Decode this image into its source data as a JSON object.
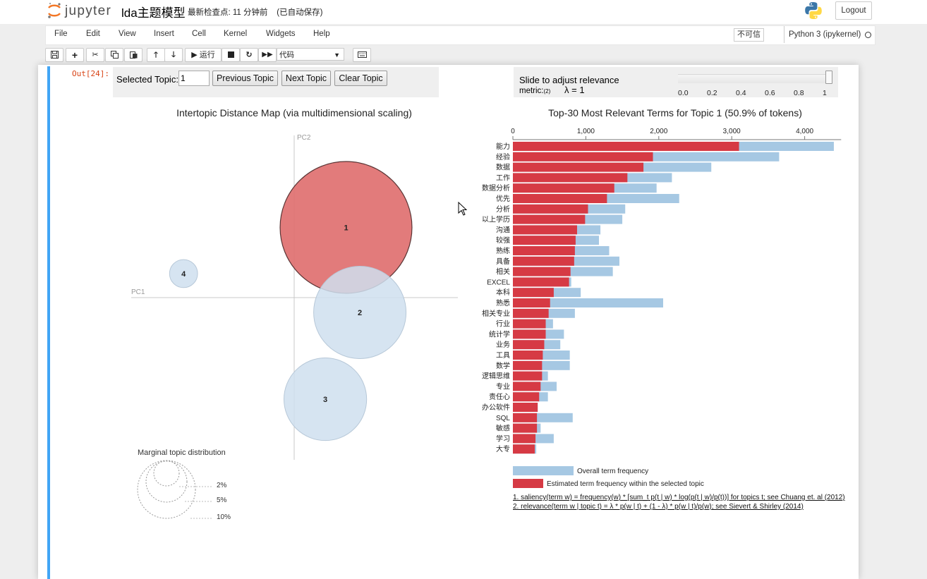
{
  "header": {
    "logo_text": "jupyter",
    "notebook_name": "lda主题模型",
    "checkpoint": "最新检查点: 11 分钟前    (已自动保存)",
    "logout_label": "Logout"
  },
  "menubar": {
    "items": [
      "File",
      "Edit",
      "View",
      "Insert",
      "Cell",
      "Kernel",
      "Widgets",
      "Help"
    ],
    "trust_label": "不可信",
    "kernel_name": "Python 3 (ipykernel)"
  },
  "toolbar": {
    "run_label": "▶ 运行",
    "cell_type": "代码",
    "icons": [
      "save-icon",
      "plus-icon",
      "cut-icon",
      "copy-icon",
      "paste-icon",
      "arrow-up-icon",
      "arrow-down-icon",
      "run-icon",
      "stop-icon",
      "restart-icon",
      "fast-forward-icon",
      "keyboard-icon"
    ]
  },
  "cell": {
    "prompt": "Out[24]:"
  },
  "controls": {
    "selected_topic_label": "Selected Topic:",
    "selected_topic_value": "1",
    "previous_label": "Previous Topic",
    "next_label": "Next Topic",
    "clear_label": "Clear Topic",
    "lambda_label_line1": "Slide to adjust relevance",
    "lambda_label_line2": "metric:",
    "lambda_label_sub": "(2)",
    "lambda_value": "λ = 1",
    "lambda_fraction": 1.0,
    "lambda_ticks": [
      "0.0",
      "0.2",
      "0.4",
      "0.6",
      "0.8",
      "1"
    ]
  },
  "colors": {
    "topic_red": "#d62728",
    "circle_red": "#e07070",
    "circle_blue": "#cfdfee",
    "bar_blue": "#a6c8e3",
    "bar_red": "#d63a44",
    "cell_bar_blue": "#42a5f5",
    "prompt_red": "#d84315"
  },
  "chart_data": [
    {
      "type": "scatter",
      "title": "Intertopic Distance Map (via multidimensional scaling)",
      "xlabel": "PC1",
      "ylabel": "PC2",
      "selected_topic": 1,
      "topics": [
        {
          "label": "1",
          "pc1": 0.15,
          "pc2": 0.38,
          "share_pct": 50.9
        },
        {
          "label": "2",
          "pc1": 0.19,
          "pc2": -0.08,
          "share_pct": 25
        },
        {
          "label": "3",
          "pc1": 0.09,
          "pc2": -0.55,
          "share_pct": 20
        },
        {
          "label": "4",
          "pc1": -0.32,
          "pc2": 0.13,
          "share_pct": 2.3
        }
      ],
      "legend": {
        "title": "Marginal topic distribution",
        "sizes": [
          2,
          5,
          10
        ],
        "labels": [
          "2%",
          "5%",
          "10%"
        ]
      }
    },
    {
      "type": "bar",
      "title": "Top-30 Most Relevant Terms for Topic 1 (50.9% of tokens)",
      "xlim": [
        0,
        4500
      ],
      "x_ticks": [
        0,
        1000,
        2000,
        3000,
        4000
      ],
      "x_tick_labels": [
        "0",
        "1,000",
        "2,000",
        "3,000",
        "4,000"
      ],
      "categories": [
        "能力",
        "经验",
        "数据",
        "工作",
        "数据分析",
        "优先",
        "分析",
        "以上学历",
        "沟通",
        "较强",
        "熟练",
        "具备",
        "相关",
        "EXCEL",
        "本科",
        "熟悉",
        "相关专业",
        "行业",
        "统计学",
        "业务",
        "工具",
        "数学",
        "逻辑思维",
        "专业",
        "责任心",
        "办公软件",
        "SQL",
        "敏感",
        "学习",
        "大专"
      ],
      "series": [
        {
          "name": "Overall term frequency",
          "values": [
            4400,
            3650,
            2720,
            2180,
            1970,
            2280,
            1540,
            1500,
            1200,
            1180,
            1320,
            1460,
            1370,
            800,
            930,
            2060,
            850,
            550,
            700,
            650,
            780,
            780,
            480,
            600,
            480,
            340,
            820,
            380,
            560,
            320
          ]
        },
        {
          "name": "Estimated term frequency within the selected topic",
          "values": [
            3100,
            1920,
            1790,
            1570,
            1390,
            1290,
            1030,
            990,
            880,
            860,
            850,
            840,
            790,
            770,
            560,
            510,
            490,
            450,
            450,
            430,
            410,
            400,
            400,
            380,
            360,
            340,
            330,
            330,
            310,
            300
          ]
        }
      ],
      "footnotes": [
        "1. saliency(term w) = frequency(w) * [sum_t p(t | w) * log(p(t | w)/p(t))] for topics t; see Chuang et. al (2012)",
        "2. relevance(term w | topic t) = λ * p(w | t) + (1 - λ) * p(w | t)/p(w); see Sievert & Shirley (2014)"
      ]
    }
  ]
}
